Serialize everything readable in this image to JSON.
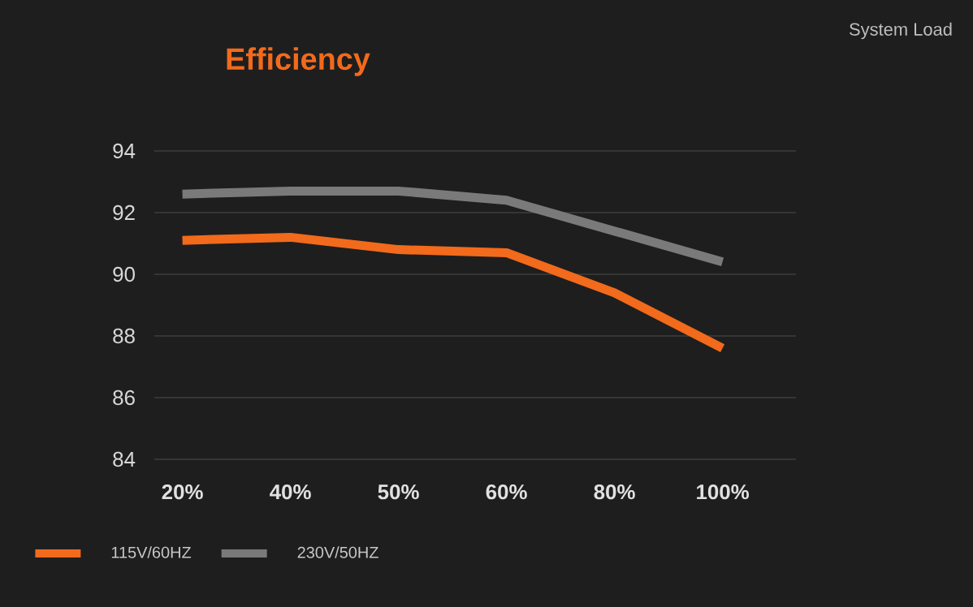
{
  "chart_data": {
    "type": "line",
    "title": "Efficiency",
    "annotations": [
      "System Load"
    ],
    "categories": [
      "20%",
      "40%",
      "50%",
      "60%",
      "80%",
      "100%"
    ],
    "series": [
      {
        "name": "115V/60HZ",
        "color": "#f26a1b",
        "values": [
          91.1,
          91.2,
          90.8,
          90.7,
          89.4,
          87.6
        ]
      },
      {
        "name": "230V/50HZ",
        "color": "#7a7a7a",
        "values": [
          92.6,
          92.7,
          92.7,
          92.4,
          91.4,
          90.4
        ]
      }
    ],
    "ylim": [
      84,
      94
    ],
    "yticks": [
      84,
      86,
      88,
      90,
      92,
      94
    ],
    "grid": "y",
    "legend": "bottom",
    "marker": "none",
    "line_style": "solid"
  }
}
